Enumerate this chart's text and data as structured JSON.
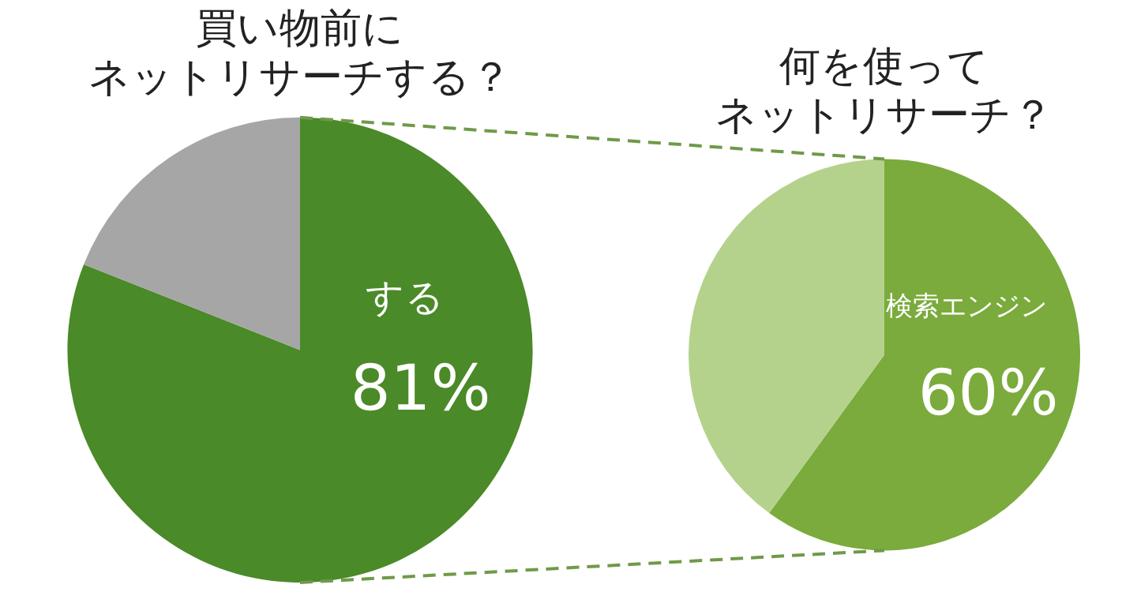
{
  "chart_data": [
    {
      "type": "pie",
      "title": "買い物前にネットリサーチする？",
      "categories": [
        "する",
        null
      ],
      "values": [
        81,
        19
      ],
      "colors": [
        "#4a8a28",
        "#a6a6a6"
      ],
      "value_labels": [
        "81%",
        null
      ],
      "legend": false
    },
    {
      "type": "pie",
      "title": "何を使ってネットリサーチ？",
      "categories": [
        "検索エンジン",
        null
      ],
      "values": [
        60,
        40
      ],
      "colors": [
        "#7aab3c",
        "#b4d28c"
      ],
      "value_labels": [
        "60%",
        null
      ],
      "legend": false
    }
  ]
}
